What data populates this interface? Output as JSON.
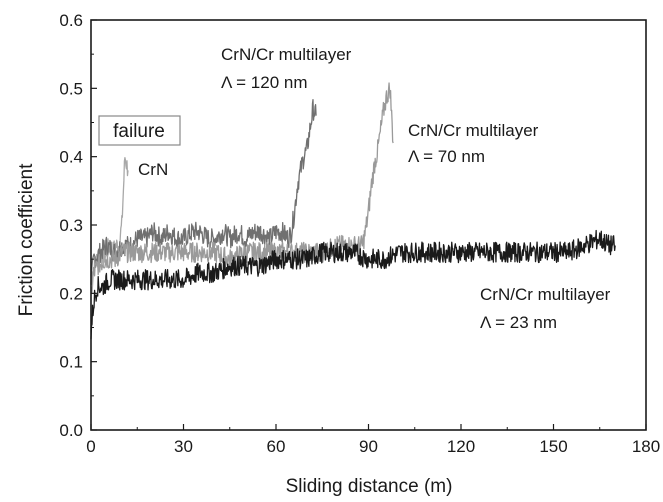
{
  "chart_data": {
    "type": "line",
    "xlabel": "Sliding distance (m)",
    "ylabel": "Friction coefficient",
    "xlim": [
      0,
      180
    ],
    "ylim": [
      0.0,
      0.6
    ],
    "xticks": [
      0,
      30,
      60,
      90,
      120,
      150,
      180
    ],
    "yticks": [
      0.0,
      0.1,
      0.2,
      0.3,
      0.4,
      0.5,
      0.6
    ],
    "xtick_labels": [
      "0",
      "30",
      "60",
      "90",
      "120",
      "150",
      "180"
    ],
    "ytick_labels": [
      "0.0",
      "0.1",
      "0.2",
      "0.3",
      "0.4",
      "0.5",
      "0.6"
    ],
    "grid": false,
    "legend": "none",
    "annotations": {
      "failure": "failure",
      "crn": "CrN",
      "ml120_line1": "CrN/Cr multilayer",
      "ml120_line2": "Λ = 120 nm",
      "ml70_line1": "CrN/Cr multilayer",
      "ml70_line2": "Λ = 70 nm",
      "ml23_line1": "CrN/Cr multilayer",
      "ml23_line2": "Λ = 23 nm"
    },
    "series": [
      {
        "color": "#a8a8a8",
        "width": 1.3,
        "x": [
          0,
          1,
          2,
          3,
          4,
          5,
          6,
          7,
          8,
          9,
          10,
          10.5,
          11,
          11.5,
          12
        ],
        "y": [
          0.2,
          0.24,
          0.25,
          0.26,
          0.25,
          0.26,
          0.27,
          0.26,
          0.27,
          0.27,
          0.3,
          0.35,
          0.4,
          0.39,
          0.38
        ]
      },
      {
        "color": "#707070",
        "width": 1.3,
        "x": [
          0,
          1,
          3,
          5,
          8,
          10,
          13,
          15,
          18,
          20,
          23,
          25,
          28,
          30,
          33,
          35,
          38,
          40,
          43,
          45,
          48,
          50,
          53,
          55,
          58,
          60,
          62,
          64,
          65,
          66,
          67,
          68,
          69,
          70,
          71,
          72,
          73
        ],
        "y": [
          0.22,
          0.25,
          0.26,
          0.27,
          0.26,
          0.27,
          0.27,
          0.28,
          0.28,
          0.29,
          0.28,
          0.29,
          0.28,
          0.28,
          0.29,
          0.29,
          0.28,
          0.28,
          0.29,
          0.28,
          0.29,
          0.28,
          0.29,
          0.29,
          0.28,
          0.29,
          0.29,
          0.28,
          0.29,
          0.32,
          0.36,
          0.38,
          0.4,
          0.41,
          0.44,
          0.47,
          0.46
        ]
      },
      {
        "color": "#9a9a9a",
        "width": 1.3,
        "x": [
          0,
          2,
          5,
          8,
          10,
          15,
          20,
          25,
          30,
          35,
          40,
          45,
          50,
          55,
          60,
          65,
          70,
          75,
          80,
          85,
          88,
          89,
          90,
          91,
          92,
          93,
          94,
          95,
          96,
          97,
          98
        ],
        "y": [
          0.22,
          0.24,
          0.25,
          0.25,
          0.26,
          0.26,
          0.26,
          0.26,
          0.26,
          0.26,
          0.26,
          0.25,
          0.26,
          0.26,
          0.26,
          0.26,
          0.26,
          0.26,
          0.27,
          0.27,
          0.27,
          0.29,
          0.32,
          0.36,
          0.39,
          0.41,
          0.44,
          0.47,
          0.49,
          0.5,
          0.42
        ]
      },
      {
        "color": "#1a1a1a",
        "width": 1.3,
        "x": [
          0,
          0.5,
          1,
          2,
          4,
          6,
          10,
          15,
          20,
          25,
          30,
          35,
          40,
          45,
          50,
          55,
          60,
          65,
          70,
          75,
          80,
          85,
          90,
          95,
          100,
          105,
          110,
          115,
          120,
          125,
          130,
          135,
          140,
          145,
          150,
          155,
          160,
          165,
          168,
          170
        ],
        "y": [
          0.14,
          0.17,
          0.19,
          0.21,
          0.21,
          0.22,
          0.22,
          0.22,
          0.22,
          0.22,
          0.22,
          0.23,
          0.23,
          0.24,
          0.24,
          0.24,
          0.25,
          0.25,
          0.25,
          0.26,
          0.26,
          0.26,
          0.25,
          0.25,
          0.26,
          0.26,
          0.26,
          0.26,
          0.26,
          0.26,
          0.26,
          0.26,
          0.26,
          0.26,
          0.26,
          0.26,
          0.27,
          0.28,
          0.27,
          0.27
        ]
      }
    ]
  }
}
